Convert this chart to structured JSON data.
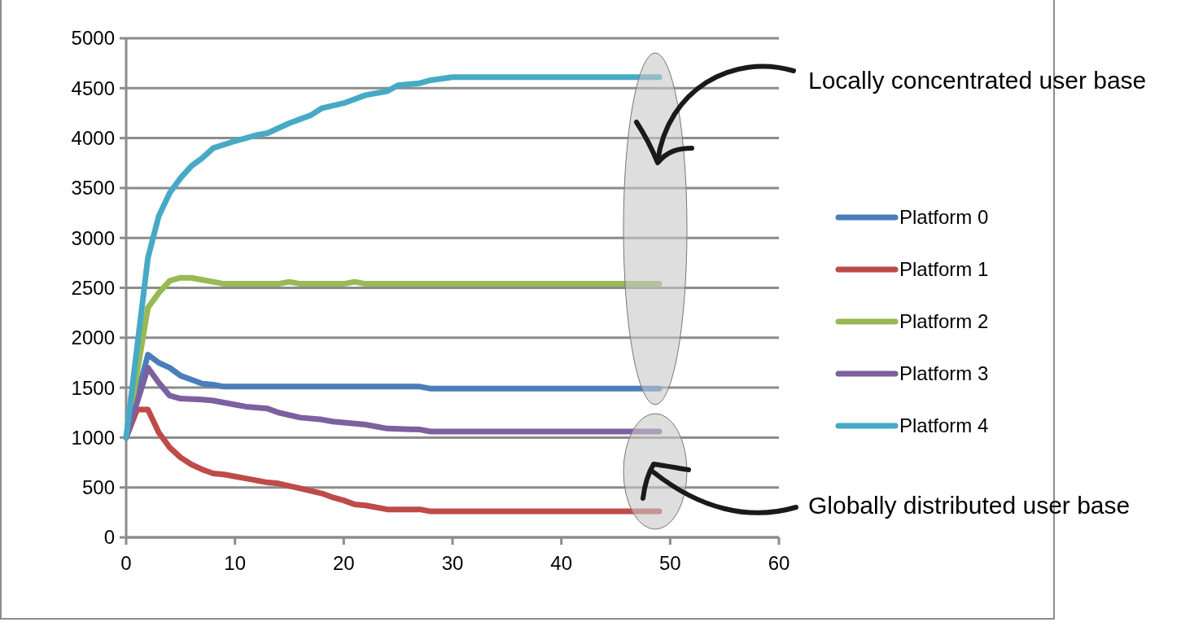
{
  "chart_data": {
    "type": "line",
    "xlim": [
      0,
      60
    ],
    "xticks": [
      0,
      10,
      20,
      30,
      40,
      50,
      60
    ],
    "ylim": [
      0,
      5000
    ],
    "yticks": [
      0,
      500,
      1000,
      1500,
      2000,
      2500,
      3000,
      3500,
      4000,
      4500,
      5000
    ],
    "grid": "y",
    "legend": "right",
    "annotations": [
      "Locally concentrated user base",
      "Globally distributed user base"
    ],
    "series": [
      {
        "name": "Platform 0",
        "color": "#4a7ebb",
        "x": [
          0,
          2,
          3,
          4,
          5,
          6,
          7,
          8,
          9,
          27,
          28,
          49
        ],
        "values": [
          1000,
          1830,
          1750,
          1700,
          1620,
          1580,
          1540,
          1530,
          1510,
          1510,
          1490,
          1490
        ]
      },
      {
        "name": "Platform 1",
        "color": "#be4b48",
        "x": [
          0,
          1,
          2,
          3,
          4,
          5,
          6,
          7,
          8,
          9,
          11,
          13,
          14,
          16,
          18,
          19,
          20,
          21,
          22,
          24,
          27,
          28,
          49
        ],
        "values": [
          1000,
          1280,
          1280,
          1050,
          900,
          800,
          730,
          680,
          640,
          630,
          590,
          550,
          540,
          490,
          440,
          400,
          370,
          330,
          320,
          280,
          280,
          260,
          260
        ]
      },
      {
        "name": "Platform 2",
        "color": "#98b954",
        "x": [
          0,
          2,
          3,
          4,
          5,
          6,
          7,
          8,
          9,
          14,
          15,
          16,
          20,
          21,
          22,
          49
        ],
        "values": [
          1000,
          2300,
          2450,
          2570,
          2600,
          2600,
          2580,
          2560,
          2540,
          2540,
          2560,
          2540,
          2540,
          2560,
          2540,
          2540
        ]
      },
      {
        "name": "Platform 3",
        "color": "#7d60a0",
        "x": [
          0,
          2,
          3,
          4,
          5,
          7,
          8,
          10,
          11,
          13,
          14,
          16,
          18,
          19,
          21,
          22,
          24,
          27,
          28,
          49
        ],
        "values": [
          1000,
          1700,
          1550,
          1420,
          1390,
          1380,
          1370,
          1330,
          1310,
          1290,
          1250,
          1200,
          1180,
          1160,
          1140,
          1130,
          1090,
          1080,
          1060,
          1060
        ]
      },
      {
        "name": "Platform 4",
        "color": "#46aac5",
        "x": [
          0,
          2,
          3,
          4,
          5,
          6,
          7,
          8,
          10,
          12,
          13,
          15,
          17,
          18,
          20,
          22,
          24,
          25,
          27,
          28,
          30,
          49
        ],
        "values": [
          1000,
          2800,
          3220,
          3450,
          3600,
          3720,
          3800,
          3900,
          3970,
          4030,
          4050,
          4150,
          4230,
          4300,
          4350,
          4430,
          4470,
          4530,
          4550,
          4580,
          4610,
          4610
        ]
      }
    ]
  }
}
